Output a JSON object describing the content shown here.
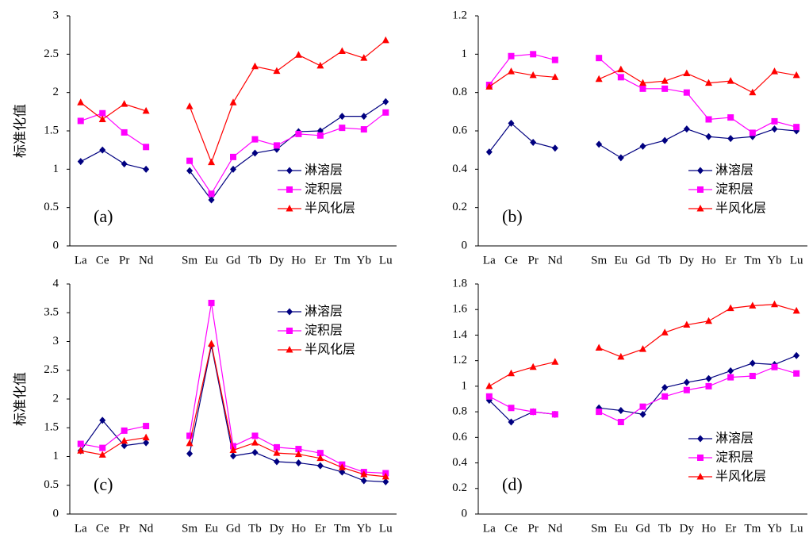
{
  "chart_data": [
    {
      "type": "line",
      "panel_label": "(a)",
      "ylabel": "标准化值",
      "legend": "lower right",
      "categories": [
        "La",
        "Ce",
        "Pr",
        "Nd",
        null,
        "Sm",
        "Eu",
        "Gd",
        "Tb",
        "Dy",
        "Ho",
        "Er",
        "Tm",
        "Yb",
        "Lu"
      ],
      "ylim": [
        0,
        3
      ],
      "yticks": [
        0,
        0.5,
        1,
        1.5,
        2,
        2.5,
        3
      ],
      "series": [
        {
          "name": "淋溶层",
          "color": "#000080",
          "marker": "diamond",
          "values": [
            1.1,
            1.25,
            1.07,
            1.0,
            null,
            0.98,
            0.6,
            1.0,
            1.21,
            1.26,
            1.49,
            1.5,
            1.69,
            1.69,
            1.88
          ]
        },
        {
          "name": "淀积层",
          "color": "#ff00ff",
          "marker": "square",
          "values": [
            1.63,
            1.73,
            1.48,
            1.29,
            null,
            1.11,
            0.68,
            1.16,
            1.39,
            1.31,
            1.46,
            1.44,
            1.54,
            1.52,
            1.74
          ]
        },
        {
          "name": "半风化层",
          "color": "#ff0000",
          "marker": "triangle",
          "values": [
            1.87,
            1.65,
            1.85,
            1.76,
            null,
            1.82,
            1.09,
            1.87,
            2.34,
            2.28,
            2.49,
            2.35,
            2.54,
            2.45,
            2.68
          ]
        }
      ]
    },
    {
      "type": "line",
      "panel_label": "(b)",
      "legend": "lower right",
      "categories": [
        "La",
        "Ce",
        "Pr",
        "Nd",
        null,
        "Sm",
        "Eu",
        "Gd",
        "Tb",
        "Dy",
        "Ho",
        "Er",
        "Tm",
        "Yb",
        "Lu"
      ],
      "ylim": [
        0,
        1.2
      ],
      "yticks": [
        0,
        0.2,
        0.4,
        0.6,
        0.8,
        1,
        1.2
      ],
      "series": [
        {
          "name": "淋溶层",
          "color": "#000080",
          "marker": "diamond",
          "values": [
            0.49,
            0.64,
            0.54,
            0.51,
            null,
            0.53,
            0.46,
            0.52,
            0.55,
            0.61,
            0.57,
            0.56,
            0.57,
            0.61,
            0.6
          ]
        },
        {
          "name": "淀积层",
          "color": "#ff00ff",
          "marker": "square",
          "values": [
            0.84,
            0.99,
            1.0,
            0.97,
            null,
            0.98,
            0.88,
            0.82,
            0.82,
            0.8,
            0.66,
            0.67,
            0.59,
            0.65,
            0.62
          ]
        },
        {
          "name": "半风化层",
          "color": "#ff0000",
          "marker": "triangle",
          "values": [
            0.83,
            0.91,
            0.89,
            0.88,
            null,
            0.87,
            0.92,
            0.85,
            0.86,
            0.9,
            0.85,
            0.86,
            0.8,
            0.91,
            0.89
          ]
        }
      ]
    },
    {
      "type": "line",
      "panel_label": "(c)",
      "ylabel": "标准化值",
      "legend": "upper right",
      "categories": [
        "La",
        "Ce",
        "Pr",
        "Nd",
        null,
        "Sm",
        "Eu",
        "Gd",
        "Tb",
        "Dy",
        "Ho",
        "Er",
        "Tm",
        "Yb",
        "Lu"
      ],
      "ylim": [
        0,
        4
      ],
      "yticks": [
        0,
        0.5,
        1,
        1.5,
        2,
        2.5,
        3,
        3.5,
        4
      ],
      "series": [
        {
          "name": "淋溶层",
          "color": "#000080",
          "marker": "diamond",
          "values": [
            1.1,
            1.63,
            1.19,
            1.24,
            null,
            1.05,
            2.93,
            1.01,
            1.07,
            0.91,
            0.89,
            0.84,
            0.73,
            0.58,
            0.56
          ]
        },
        {
          "name": "淀积层",
          "color": "#ff00ff",
          "marker": "square",
          "values": [
            1.22,
            1.15,
            1.45,
            1.53,
            null,
            1.36,
            3.67,
            1.18,
            1.36,
            1.16,
            1.13,
            1.06,
            0.86,
            0.73,
            0.71
          ]
        },
        {
          "name": "半风化层",
          "color": "#ff0000",
          "marker": "triangle",
          "values": [
            1.1,
            1.03,
            1.27,
            1.33,
            null,
            1.23,
            2.96,
            1.11,
            1.24,
            1.06,
            1.04,
            0.97,
            0.81,
            0.69,
            0.65
          ]
        }
      ]
    },
    {
      "type": "line",
      "panel_label": "(d)",
      "legend": "lower right",
      "categories": [
        "La",
        "Ce",
        "Pr",
        "Nd",
        null,
        "Sm",
        "Eu",
        "Gd",
        "Tb",
        "Dy",
        "Ho",
        "Er",
        "Tm",
        "Yb",
        "Lu"
      ],
      "ylim": [
        0,
        1.8
      ],
      "yticks": [
        0,
        0.2,
        0.4,
        0.6,
        0.8,
        1,
        1.2,
        1.4,
        1.6,
        1.8
      ],
      "series": [
        {
          "name": "淋溶层",
          "color": "#000080",
          "marker": "diamond",
          "values": [
            0.89,
            0.72,
            0.8,
            0.78,
            null,
            0.83,
            0.81,
            0.78,
            0.99,
            1.03,
            1.06,
            1.12,
            1.18,
            1.17,
            1.24
          ]
        },
        {
          "name": "淀积层",
          "color": "#ff00ff",
          "marker": "square",
          "values": [
            0.92,
            0.83,
            0.8,
            0.78,
            null,
            0.8,
            0.72,
            0.84,
            0.92,
            0.97,
            1.0,
            1.07,
            1.08,
            1.15,
            1.1
          ]
        },
        {
          "name": "半风化层",
          "color": "#ff0000",
          "marker": "triangle",
          "values": [
            1.0,
            1.1,
            1.15,
            1.19,
            null,
            1.3,
            1.23,
            1.29,
            1.42,
            1.48,
            1.51,
            1.61,
            1.63,
            1.64,
            1.59
          ]
        }
      ]
    }
  ]
}
